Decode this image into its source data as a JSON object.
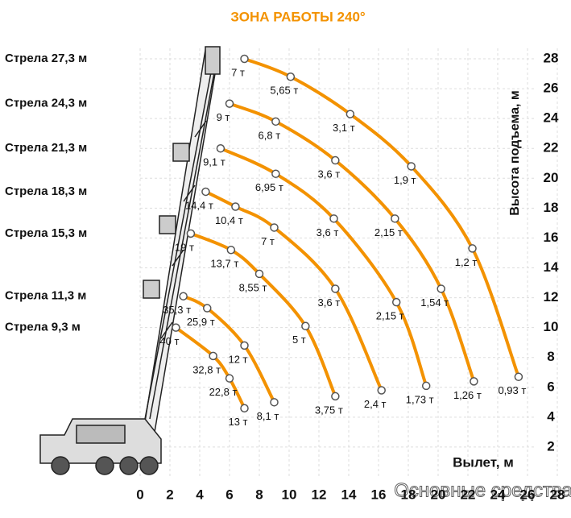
{
  "chart_data": {
    "type": "line",
    "title": "ЗОНА РАБОТЫ 240°",
    "x_label": "Вылет, м",
    "y_label": "Высота подъема, м",
    "watermark": "Основные средства",
    "xlim": [
      0,
      28
    ],
    "xticks": [
      0,
      2,
      4,
      6,
      8,
      10,
      12,
      14,
      16,
      18,
      20,
      22,
      24,
      26,
      28
    ],
    "ylim": [
      0,
      28
    ],
    "yticks": [
      2,
      4,
      6,
      8,
      10,
      12,
      14,
      16,
      18,
      20,
      22,
      24,
      26,
      28
    ],
    "grid": true,
    "series": [
      {
        "name": "Стрела 27,3 м",
        "color": "#f39200",
        "x": [
          7.0,
          10.1,
          14.1,
          18.2,
          22.3,
          25.4
        ],
        "values": [
          28,
          26.8,
          24.3,
          20.8,
          15.3,
          6.7
        ],
        "labels": [
          "7 т",
          "5,65 т",
          "3,1 т",
          "1,9 т",
          "1,2 т",
          "0,93 т"
        ]
      },
      {
        "name": "Стрела 24,3 м",
        "color": "#f39200",
        "x": [
          6.0,
          9.1,
          13.1,
          17.1,
          20.2,
          22.4
        ],
        "values": [
          25.0,
          23.8,
          21.2,
          17.3,
          12.6,
          6.4
        ],
        "labels": [
          "9 т",
          "6,8 т",
          "3,6 т",
          "2,15 т",
          "1,54 т",
          "1,26 т"
        ]
      },
      {
        "name": "Стрела 21,3 м",
        "color": "#f39200",
        "x": [
          5.4,
          9.1,
          13.0,
          17.2,
          19.2
        ],
        "values": [
          22.0,
          20.3,
          17.3,
          11.7,
          6.1
        ],
        "labels": [
          "9,1 т",
          "6,95 т",
          "3,6 т",
          "2,15 т",
          "1,73 т"
        ]
      },
      {
        "name": "Стрела 18,3 м",
        "color": "#f39200",
        "x": [
          4.4,
          6.4,
          9.0,
          13.1,
          16.2
        ],
        "values": [
          19.1,
          18.1,
          16.7,
          12.6,
          5.8
        ],
        "labels": [
          "14,4 т",
          "10,4 т",
          "7 т",
          "3,6 т",
          "2,4 т"
        ]
      },
      {
        "name": "Стрела 15,3 м",
        "color": "#f39200",
        "x": [
          3.4,
          6.1,
          8.0,
          11.1,
          13.1
        ],
        "values": [
          16.3,
          15.2,
          13.6,
          10.1,
          5.4
        ],
        "labels": [
          "19 т",
          "13,7 т",
          "8,55 т",
          "5 т",
          "3,75 т"
        ]
      },
      {
        "name": "Стрела 11,3 м",
        "color": "#f39200",
        "x": [
          2.9,
          4.5,
          7.0,
          9.0
        ],
        "values": [
          12.1,
          11.3,
          8.8,
          5.0
        ],
        "labels": [
          "35,3 т",
          "25,9 т",
          "12 т",
          "8,1 т"
        ]
      },
      {
        "name": "Стрела 9,3 м",
        "color": "#f39200",
        "x": [
          2.4,
          4.9,
          6.0,
          7.0
        ],
        "values": [
          10.0,
          8.1,
          6.6,
          4.6
        ],
        "labels": [
          "40 т",
          "32,8 т",
          "22,8 т",
          "13 т"
        ]
      }
    ]
  }
}
